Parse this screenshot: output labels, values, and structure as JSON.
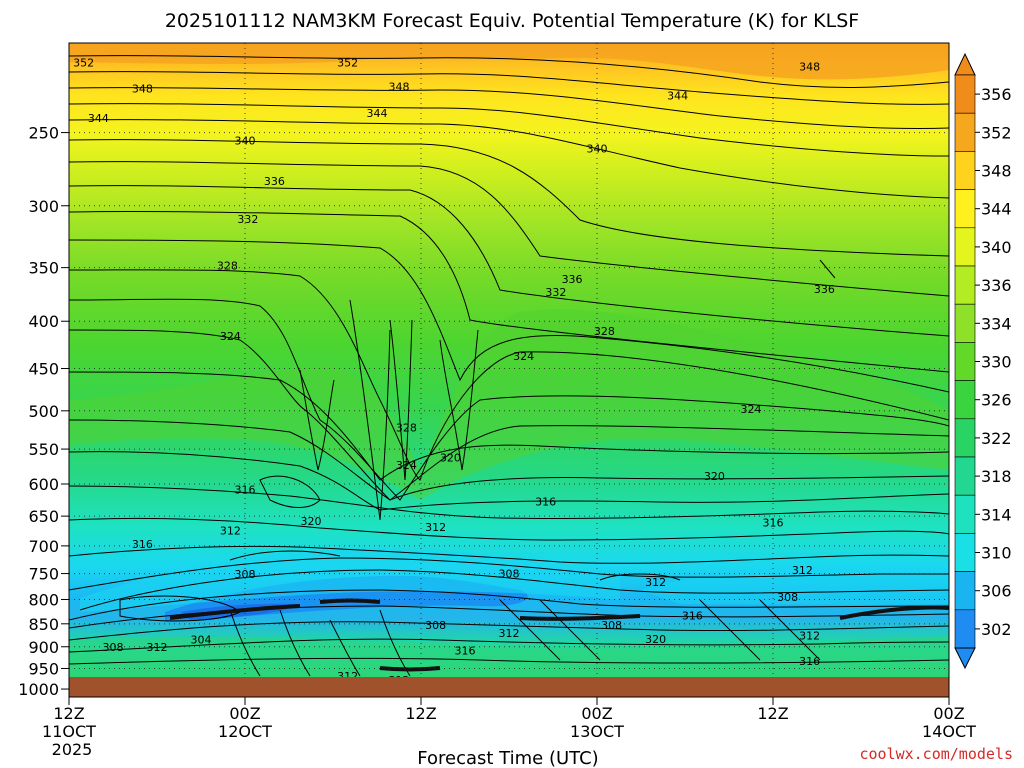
{
  "chart_data": {
    "type": "heatmap",
    "title": "2025101112 NAM3KM Forecast Equiv. Potential Temperature (K) for KLSF",
    "xlabel": "Forecast Time (UTC)",
    "ylabel": "",
    "credit": "coolwx.com/models",
    "year_label": "2025",
    "x_ticks": [
      {
        "hour": 0,
        "time": "12Z",
        "date": "11OCT"
      },
      {
        "hour": 12,
        "time": "00Z",
        "date": "12OCT"
      },
      {
        "hour": 24,
        "time": "12Z",
        "date": ""
      },
      {
        "hour": 36,
        "time": "00Z",
        "date": "13OCT"
      },
      {
        "hour": 48,
        "time": "12Z",
        "date": ""
      },
      {
        "hour": 60,
        "time": "00Z",
        "date": "14OCT"
      }
    ],
    "x_range_hours": [
      0,
      60
    ],
    "y_axis": "pressure (hPa), log scale, surface at bottom",
    "y_ticks": [
      250,
      300,
      350,
      400,
      450,
      500,
      550,
      600,
      650,
      700,
      750,
      800,
      850,
      900,
      950,
      1000
    ],
    "y_range_hpa": [
      200,
      1020
    ],
    "grid": true,
    "colorbar": {
      "labels": [
        356,
        352,
        348,
        344,
        340,
        336,
        334,
        330,
        326,
        322,
        318,
        314,
        310,
        306,
        302
      ],
      "colors": [
        "#f08c1a",
        "#f5a81e",
        "#ffd21e",
        "#fff01e",
        "#e4f51e",
        "#b4ec23",
        "#8ee028",
        "#62d828",
        "#3ad43e",
        "#2ad464",
        "#22d890",
        "#1ee2be",
        "#1ae0e6",
        "#1ab4f0",
        "#1e8cf0"
      ]
    },
    "contour_labels": [
      {
        "value": "352",
        "hour": 1.0,
        "p": 210
      },
      {
        "value": "352",
        "hour": 19.0,
        "p": 210
      },
      {
        "value": "348",
        "hour": 50.5,
        "p": 212
      },
      {
        "value": "348",
        "hour": 5.0,
        "p": 224
      },
      {
        "value": "348",
        "hour": 22.5,
        "p": 223
      },
      {
        "value": "344",
        "hour": 41.5,
        "p": 228
      },
      {
        "value": "344",
        "hour": 2.0,
        "p": 241
      },
      {
        "value": "344",
        "hour": 21.0,
        "p": 238
      },
      {
        "value": "340",
        "hour": 12.0,
        "p": 255
      },
      {
        "value": "340",
        "hour": 36.0,
        "p": 260
      },
      {
        "value": "336",
        "hour": 14.0,
        "p": 282
      },
      {
        "value": "332",
        "hour": 12.2,
        "p": 310
      },
      {
        "value": "328",
        "hour": 10.8,
        "p": 348
      },
      {
        "value": "336",
        "hour": 34.3,
        "p": 360
      },
      {
        "value": "332",
        "hour": 33.2,
        "p": 372
      },
      {
        "value": "336",
        "hour": 51.5,
        "p": 369
      },
      {
        "value": "324",
        "hour": 11.0,
        "p": 415
      },
      {
        "value": "328",
        "hour": 36.5,
        "p": 410
      },
      {
        "value": "324",
        "hour": 31.0,
        "p": 436
      },
      {
        "value": "324",
        "hour": 46.5,
        "p": 498
      },
      {
        "value": "328",
        "hour": 23.0,
        "p": 521
      },
      {
        "value": "324",
        "hour": 23.0,
        "p": 572
      },
      {
        "value": "320",
        "hour": 26.0,
        "p": 562
      },
      {
        "value": "320",
        "hour": 44.0,
        "p": 588
      },
      {
        "value": "316",
        "hour": 12.0,
        "p": 608
      },
      {
        "value": "316",
        "hour": 32.5,
        "p": 627
      },
      {
        "value": "320",
        "hour": 16.5,
        "p": 658
      },
      {
        "value": "312",
        "hour": 25.0,
        "p": 668
      },
      {
        "value": "316",
        "hour": 48.0,
        "p": 660
      },
      {
        "value": "312",
        "hour": 11.0,
        "p": 674
      },
      {
        "value": "316",
        "hour": 5.0,
        "p": 697
      },
      {
        "value": "308",
        "hour": 30.0,
        "p": 750
      },
      {
        "value": "312",
        "hour": 50.0,
        "p": 743
      },
      {
        "value": "308",
        "hour": 12.0,
        "p": 751
      },
      {
        "value": "312",
        "hour": 40.0,
        "p": 766
      },
      {
        "value": "308",
        "hour": 49.0,
        "p": 795
      },
      {
        "value": "316",
        "hour": 42.5,
        "p": 833
      },
      {
        "value": "308",
        "hour": 25.0,
        "p": 853
      },
      {
        "value": "308",
        "hour": 37.0,
        "p": 852
      },
      {
        "value": "312",
        "hour": 30.0,
        "p": 870
      },
      {
        "value": "320",
        "hour": 40.0,
        "p": 883
      },
      {
        "value": "312",
        "hour": 50.5,
        "p": 875
      },
      {
        "value": "304",
        "hour": 9.0,
        "p": 884
      },
      {
        "value": "308",
        "hour": 3.0,
        "p": 900
      },
      {
        "value": "312",
        "hour": 6.0,
        "p": 901
      },
      {
        "value": "316",
        "hour": 27.0,
        "p": 908
      },
      {
        "value": "316",
        "hour": 50.5,
        "p": 933
      },
      {
        "value": "312",
        "hour": 19.0,
        "p": 968
      },
      {
        "value": "312",
        "hour": 22.5,
        "p": 978
      }
    ]
  }
}
